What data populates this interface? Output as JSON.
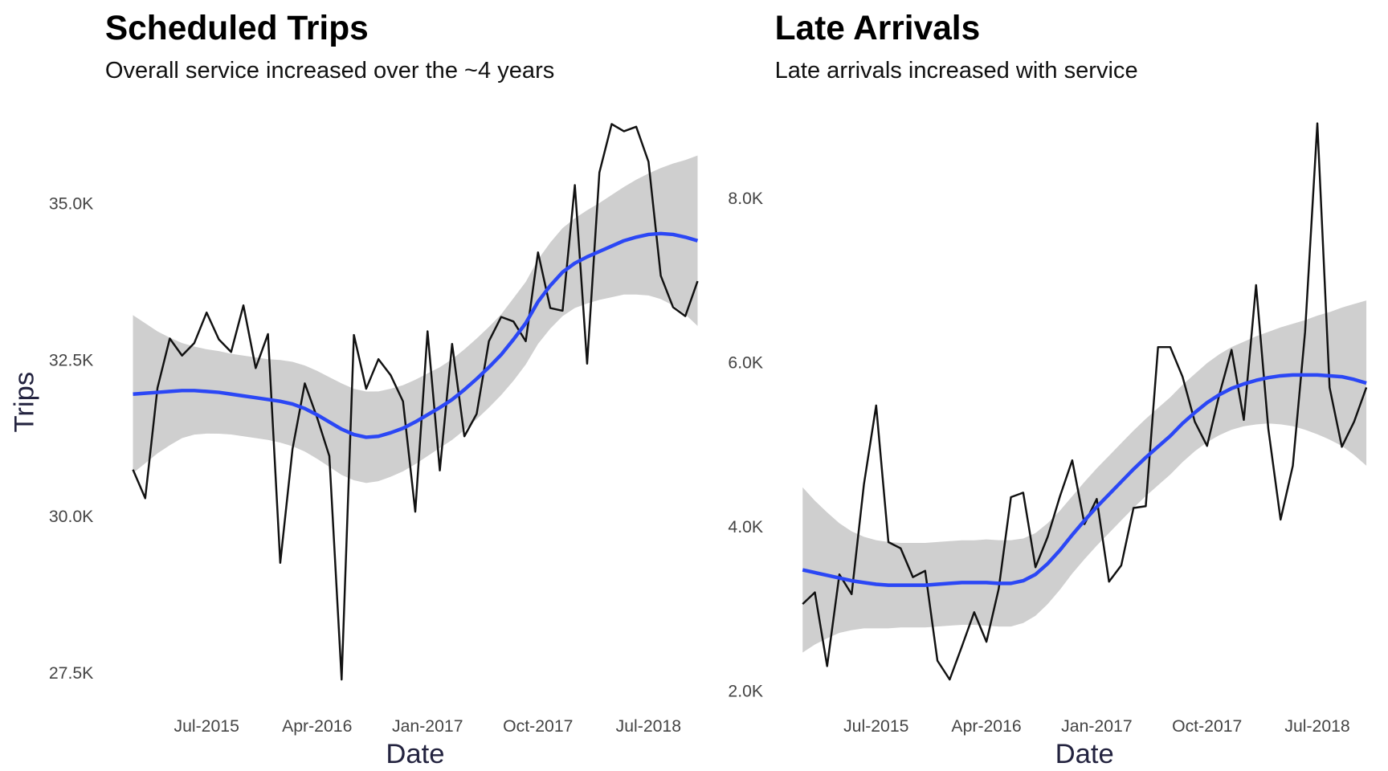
{
  "chart_data": [
    {
      "type": "line",
      "title": "Scheduled Trips",
      "subtitle": "Overall service increased over the ~4 years",
      "x_label": "Date",
      "y_label": "Trips",
      "x": [
        "2015-01",
        "2015-02",
        "2015-03",
        "2015-04",
        "2015-05",
        "2015-06",
        "2015-07",
        "2015-08",
        "2015-09",
        "2015-10",
        "2015-11",
        "2015-12",
        "2016-01",
        "2016-02",
        "2016-03",
        "2016-04",
        "2016-05",
        "2016-06",
        "2016-07",
        "2016-08",
        "2016-09",
        "2016-10",
        "2016-11",
        "2016-12",
        "2017-01",
        "2017-02",
        "2017-03",
        "2017-04",
        "2017-05",
        "2017-06",
        "2017-07",
        "2017-08",
        "2017-09",
        "2017-10",
        "2017-11",
        "2017-12",
        "2018-01",
        "2018-02",
        "2018-03",
        "2018-04",
        "2018-05",
        "2018-06",
        "2018-07",
        "2018-08",
        "2018-09",
        "2018-10",
        "2018-11"
      ],
      "xlim": [
        "2015-01",
        "2018-11"
      ],
      "xticks": [
        {
          "value": "2015-07",
          "label": "Jul-2015"
        },
        {
          "value": "2016-04",
          "label": "Apr-2016"
        },
        {
          "value": "2017-01",
          "label": "Jan-2017"
        },
        {
          "value": "2017-10",
          "label": "Oct-2017"
        },
        {
          "value": "2018-07",
          "label": "Jul-2018"
        }
      ],
      "ylim": [
        27200,
        36380
      ],
      "yticks": [
        {
          "value": 27500,
          "label": "27.5K"
        },
        {
          "value": 30000,
          "label": "30.0K"
        },
        {
          "value": 32500,
          "label": "32.5K"
        },
        {
          "value": 35000,
          "label": "35.0K"
        }
      ],
      "series": [
        {
          "color": "#111111",
          "values": [
            30740,
            30282,
            32046,
            32835,
            32562,
            32763,
            33250,
            32820,
            32620,
            33365,
            32362,
            32906,
            29250,
            31070,
            32118,
            31573,
            30956,
            27385,
            32892,
            32032,
            32505,
            32247,
            31831,
            30067,
            32950,
            30727,
            32749,
            31272,
            31630,
            32792,
            33180,
            33107,
            32792,
            34211,
            33322,
            33279,
            35287,
            32433,
            35488,
            36262,
            36147,
            36219,
            35660,
            33838,
            33336,
            33193,
            33752
          ]
        }
      ],
      "smooth": {
        "color": "#2b47f5",
        "values": [
          31946,
          31960,
          31974,
          31989,
          32003,
          32003,
          31989,
          31974,
          31946,
          31917,
          31889,
          31860,
          31831,
          31788,
          31716,
          31616,
          31501,
          31386,
          31300,
          31257,
          31272,
          31329,
          31401,
          31501,
          31616,
          31731,
          31860,
          32017,
          32190,
          32376,
          32577,
          32820,
          33080,
          33423,
          33681,
          33896,
          34039,
          34140,
          34226,
          34312,
          34398,
          34455,
          34498,
          34512,
          34498,
          34455,
          34398
        ]
      },
      "band": {
        "color": "#cfcfcf",
        "lower": [
          30684,
          30841,
          30999,
          31129,
          31243,
          31300,
          31315,
          31314,
          31301,
          31272,
          31244,
          31215,
          31171,
          31114,
          31028,
          30913,
          30784,
          30655,
          30569,
          30526,
          30555,
          30626,
          30713,
          30827,
          30956,
          31086,
          31215,
          31372,
          31545,
          31731,
          31932,
          32160,
          32420,
          32749,
          32993,
          33193,
          33322,
          33394,
          33452,
          33495,
          33538,
          33537,
          33523,
          33465,
          33365,
          33222,
          33036
        ],
        "upper": [
          33208,
          33079,
          32949,
          32849,
          32763,
          32706,
          32663,
          32634,
          32591,
          32562,
          32534,
          32505,
          32491,
          32462,
          32404,
          32319,
          32218,
          32117,
          32031,
          31988,
          31989,
          32032,
          32089,
          32175,
          32276,
          32376,
          32505,
          32662,
          32835,
          33021,
          33222,
          33480,
          33740,
          34097,
          34369,
          34599,
          34756,
          34886,
          35000,
          35129,
          35258,
          35373,
          35473,
          35559,
          35631,
          35688,
          35760
        ]
      }
    },
    {
      "type": "line",
      "title": "Late Arrivals",
      "subtitle": "Late arrivals increased with service",
      "x_label": "Date",
      "x": [
        "2015-01",
        "2015-02",
        "2015-03",
        "2015-04",
        "2015-05",
        "2015-06",
        "2015-07",
        "2015-08",
        "2015-09",
        "2015-10",
        "2015-11",
        "2015-12",
        "2016-01",
        "2016-02",
        "2016-03",
        "2016-04",
        "2016-05",
        "2016-06",
        "2016-07",
        "2016-08",
        "2016-09",
        "2016-10",
        "2016-11",
        "2016-12",
        "2017-01",
        "2017-02",
        "2017-03",
        "2017-04",
        "2017-05",
        "2017-06",
        "2017-07",
        "2017-08",
        "2017-09",
        "2017-10",
        "2017-11",
        "2017-12",
        "2018-01",
        "2018-02",
        "2018-03",
        "2018-04",
        "2018-05",
        "2018-06",
        "2018-07",
        "2018-08",
        "2018-09",
        "2018-10",
        "2018-11"
      ],
      "xlim": [
        "2015-01",
        "2018-11"
      ],
      "xticks": [
        {
          "value": "2015-07",
          "label": "Jul-2015"
        },
        {
          "value": "2016-04",
          "label": "Apr-2016"
        },
        {
          "value": "2017-01",
          "label": "Jan-2017"
        },
        {
          "value": "2017-10",
          "label": "Oct-2017"
        },
        {
          "value": "2018-07",
          "label": "Jul-2018"
        }
      ],
      "ylim": [
        1990,
        8990
      ],
      "yticks": [
        {
          "value": 2000,
          "label": "2.0K"
        },
        {
          "value": 4000,
          "label": "4.0K"
        },
        {
          "value": 6000,
          "label": "6.0K"
        },
        {
          "value": 8000,
          "label": "8.0K"
        }
      ],
      "series": [
        {
          "color": "#111111",
          "values": [
            3051,
            3193,
            2295,
            3412,
            3171,
            4507,
            5471,
            3806,
            3730,
            3379,
            3456,
            2361,
            2131,
            2536,
            2952,
            2591,
            3237,
            4354,
            4408,
            3500,
            3872,
            4365,
            4803,
            4025,
            4332,
            3324,
            3522,
            4222,
            4244,
            6182,
            6182,
            5821,
            5273,
            4978,
            5602,
            6149,
            5295,
            6938,
            5186,
            4080,
            4737,
            6368,
            8909,
            5690,
            4967,
            5273,
            5690
          ]
        }
      ],
      "smooth": {
        "color": "#2b47f5",
        "values": [
          3467,
          3434,
          3401,
          3368,
          3335,
          3313,
          3292,
          3281,
          3281,
          3281,
          3281,
          3292,
          3303,
          3313,
          3313,
          3313,
          3303,
          3303,
          3335,
          3412,
          3544,
          3708,
          3894,
          4069,
          4234,
          4387,
          4541,
          4694,
          4837,
          4969,
          5100,
          5252,
          5384,
          5505,
          5602,
          5679,
          5733,
          5777,
          5810,
          5832,
          5843,
          5843,
          5843,
          5832,
          5821,
          5788,
          5744
        ]
      },
      "band": {
        "color": "#cfcfcf",
        "lower": [
          2460,
          2558,
          2634,
          2700,
          2733,
          2755,
          2755,
          2755,
          2766,
          2766,
          2766,
          2777,
          2788,
          2798,
          2798,
          2787,
          2777,
          2777,
          2820,
          2908,
          3051,
          3226,
          3423,
          3598,
          3763,
          3916,
          4070,
          4223,
          4366,
          4498,
          4629,
          4781,
          4913,
          5023,
          5109,
          5175,
          5218,
          5240,
          5252,
          5241,
          5219,
          5175,
          5120,
          5055,
          4978,
          4868,
          4737
        ],
        "upper": [
          4474,
          4310,
          4168,
          4036,
          3937,
          3871,
          3829,
          3807,
          3796,
          3796,
          3796,
          3807,
          3818,
          3828,
          3828,
          3839,
          3829,
          3829,
          3850,
          3916,
          4037,
          4190,
          4365,
          4540,
          4705,
          4858,
          5012,
          5165,
          5308,
          5440,
          5571,
          5723,
          5855,
          5987,
          6095,
          6183,
          6248,
          6314,
          6368,
          6423,
          6467,
          6511,
          6566,
          6609,
          6664,
          6708,
          6751
        ]
      }
    }
  ]
}
